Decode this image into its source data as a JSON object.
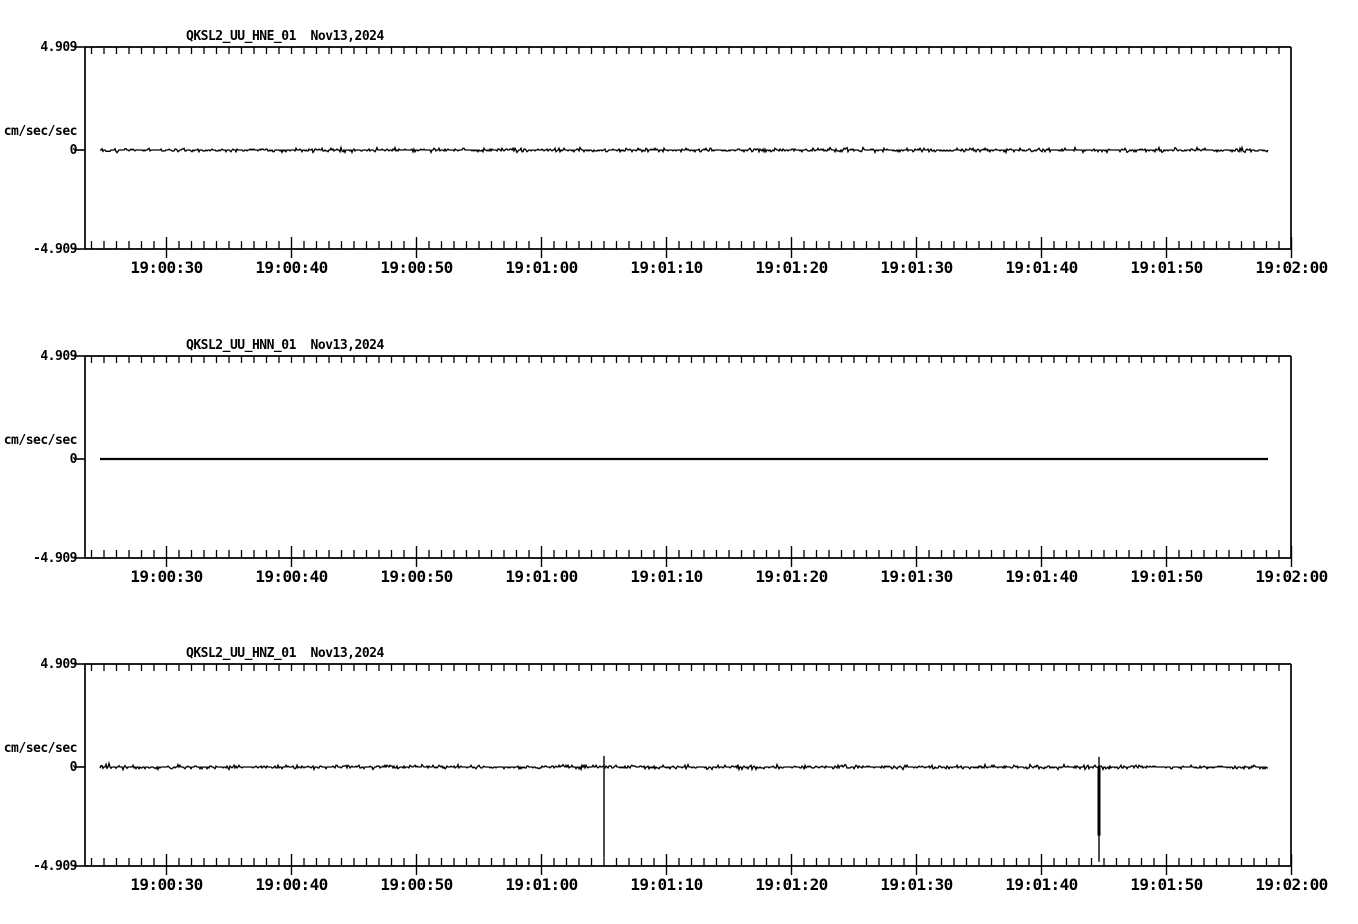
{
  "page": {
    "background_color": "#ffffff",
    "line_color": "#000000",
    "n_panels": 3
  },
  "chart_data": [
    {
      "type": "line",
      "title": "QKSL2_UU_HNE_01  Nov13,2024",
      "ylabel": "cm/sec/sec",
      "ylim": [
        -4.909,
        4.909
      ],
      "ytick_labels": [
        "4.909",
        "0",
        "-4.909"
      ],
      "x_tick_labels": [
        "19:00:30",
        "19:00:40",
        "19:00:50",
        "19:01:00",
        "19:01:10",
        "19:01:20",
        "19:01:30",
        "19:01:40",
        "19:01:50",
        "19:02:00"
      ],
      "x_minor_tick_interval_s": 1,
      "x_range": {
        "start": "19:00:23.5",
        "end": "19:02:00"
      },
      "trace": {
        "style": "noise",
        "baseline": 0,
        "peak_noise": 0.1,
        "start": "19:00:24.7",
        "end": "19:01:58.2",
        "spikes": []
      }
    },
    {
      "type": "line",
      "title": "QKSL2_UU_HNN_01  Nov13,2024",
      "ylabel": "cm/sec/sec",
      "ylim": [
        -4.909,
        4.909
      ],
      "ytick_labels": [
        "4.909",
        "0",
        "-4.909"
      ],
      "x_tick_labels": [
        "19:00:30",
        "19:00:40",
        "19:00:50",
        "19:01:00",
        "19:01:10",
        "19:01:20",
        "19:01:30",
        "19:01:40",
        "19:01:50",
        "19:02:00"
      ],
      "x_minor_tick_interval_s": 1,
      "x_range": {
        "start": "19:00:23.5",
        "end": "19:02:00"
      },
      "trace": {
        "style": "flat",
        "baseline": 0,
        "peak_noise": 0.02,
        "start": "19:00:24.7",
        "end": "19:01:58.2",
        "spikes": []
      }
    },
    {
      "type": "line",
      "title": "QKSL2_UU_HNZ_01  Nov13,2024",
      "ylabel": "cm/sec/sec",
      "ylim": [
        -4.909,
        4.909
      ],
      "ytick_labels": [
        "4.909",
        "0",
        "-4.909"
      ],
      "x_tick_labels": [
        "19:00:30",
        "19:00:40",
        "19:00:50",
        "19:01:00",
        "19:01:10",
        "19:01:20",
        "19:01:30",
        "19:01:40",
        "19:01:50",
        "19:02:00"
      ],
      "x_minor_tick_interval_s": 1,
      "x_range": {
        "start": "19:00:23.5",
        "end": "19:02:00"
      },
      "trace": {
        "style": "noise",
        "baseline": 0,
        "peak_noise": 0.1,
        "start": "19:00:24.7",
        "end": "19:01:58.2",
        "spikes": [
          {
            "time": "19:01:05.0",
            "value": -4.5,
            "overshoot": 0.55,
            "dense_to": 0
          },
          {
            "time": "19:01:44.6",
            "value": -4.7,
            "overshoot": 0.5,
            "dense_to": -3.4
          }
        ]
      }
    }
  ]
}
